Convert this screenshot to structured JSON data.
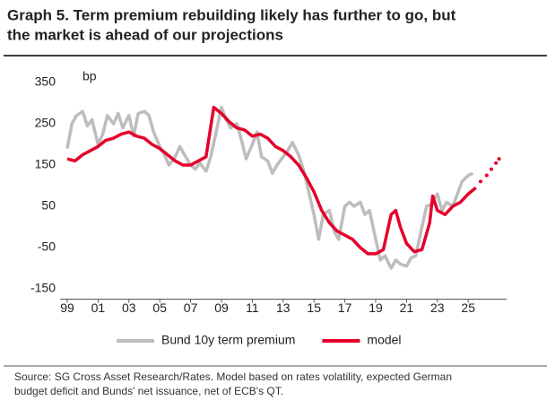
{
  "chart_data": {
    "type": "line",
    "title": [
      "Graph 5.  Term premium rebuilding likely has further to go, but",
      "the market is ahead of our projections"
    ],
    "y_unit": "bp",
    "source": [
      "Source: SG Cross Asset Research/Rates. Model based on rates volatility, expected German",
      "budget deficit and Bunds' net issuance, net of ECB's QT."
    ],
    "xlim": [
      1999,
      2027.5
    ],
    "xticks": [
      {
        "value": 1999,
        "label": "99"
      },
      {
        "value": 2001,
        "label": "01"
      },
      {
        "value": 2003,
        "label": "03"
      },
      {
        "value": 2005,
        "label": "05"
      },
      {
        "value": 2007,
        "label": "07"
      },
      {
        "value": 2009,
        "label": "09"
      },
      {
        "value": 2011,
        "label": "11"
      },
      {
        "value": 2013,
        "label": "13"
      },
      {
        "value": 2015,
        "label": "15"
      },
      {
        "value": 2017,
        "label": "17"
      },
      {
        "value": 2019,
        "label": "19"
      },
      {
        "value": 2021,
        "label": "21"
      },
      {
        "value": 2023,
        "label": "23"
      },
      {
        "value": 2025,
        "label": "25"
      }
    ],
    "ylim": [
      -175,
      375
    ],
    "yticks": [
      -150,
      -50,
      50,
      150,
      250,
      350
    ],
    "grid": false,
    "legend": "bottom",
    "series": [
      {
        "name": "Bund 10y term premium",
        "color": "#bdbdbd",
        "style": "solid",
        "x": [
          1999,
          1999.3,
          1999.6,
          2000,
          2000.3,
          2000.6,
          2001,
          2001.3,
          2001.6,
          2002,
          2002.3,
          2002.6,
          2003,
          2003.3,
          2003.6,
          2004,
          2004.3,
          2004.6,
          2005,
          2005.3,
          2005.6,
          2006,
          2006.3,
          2006.6,
          2007,
          2007.3,
          2007.6,
          2008,
          2008.3,
          2008.6,
          2009,
          2009.3,
          2009.6,
          2010,
          2010.3,
          2010.6,
          2011,
          2011.3,
          2011.6,
          2012,
          2012.3,
          2012.6,
          2013,
          2013.3,
          2013.6,
          2014,
          2014.3,
          2014.6,
          2015,
          2015.3,
          2015.6,
          2016,
          2016.3,
          2016.6,
          2017,
          2017.3,
          2017.6,
          2018,
          2018.3,
          2018.6,
          2019,
          2019.3,
          2019.6,
          2020,
          2020.3,
          2020.6,
          2021,
          2021.3,
          2021.6,
          2022,
          2022.3,
          2022.6,
          2023,
          2023.3,
          2023.6,
          2024,
          2024.3,
          2024.6,
          2025,
          2025.3
        ],
        "values": [
          190,
          250,
          270,
          280,
          245,
          260,
          200,
          225,
          270,
          250,
          275,
          240,
          270,
          220,
          275,
          280,
          270,
          230,
          195,
          175,
          150,
          170,
          195,
          175,
          150,
          140,
          155,
          135,
          170,
          220,
          290,
          260,
          240,
          250,
          210,
          165,
          200,
          230,
          170,
          160,
          130,
          150,
          170,
          185,
          205,
          175,
          140,
          95,
          30,
          -30,
          30,
          40,
          -10,
          -30,
          50,
          60,
          50,
          60,
          30,
          40,
          -30,
          -80,
          -70,
          -100,
          -80,
          -90,
          -95,
          -75,
          -70,
          0,
          50,
          55,
          80,
          40,
          60,
          50,
          80,
          110,
          125,
          130
        ]
      },
      {
        "name": "model",
        "color": "#e4002b",
        "style": "solid",
        "x": [
          1999,
          1999.5,
          2000,
          2000.5,
          2001,
          2001.5,
          2002,
          2002.5,
          2003,
          2003.5,
          2004,
          2004.5,
          2005,
          2005.5,
          2006,
          2006.5,
          2007,
          2007.5,
          2008,
          2008.5,
          2009,
          2009.5,
          2010,
          2010.5,
          2011,
          2011.5,
          2012,
          2012.5,
          2013,
          2013.5,
          2014,
          2014.5,
          2015,
          2015.5,
          2016,
          2016.5,
          2017,
          2017.5,
          2018,
          2018.5,
          2019,
          2019.5,
          2020,
          2020.3,
          2020.6,
          2021,
          2021.5,
          2022,
          2022.5,
          2022.7,
          2023,
          2023.5,
          2024,
          2024.5,
          2025,
          2025.5
        ],
        "values": [
          165,
          160,
          175,
          185,
          195,
          210,
          215,
          225,
          230,
          220,
          215,
          200,
          190,
          175,
          160,
          150,
          150,
          160,
          170,
          290,
          275,
          255,
          240,
          235,
          220,
          225,
          215,
          195,
          185,
          170,
          150,
          120,
          85,
          40,
          10,
          -10,
          -20,
          -30,
          -50,
          -65,
          -65,
          -55,
          30,
          40,
          0,
          -40,
          -60,
          -55,
          10,
          75,
          40,
          30,
          50,
          60,
          80,
          95
        ]
      },
      {
        "color": "#e4002b",
        "style": "dotted",
        "x": [
          2025.8,
          2026.2,
          2026.5,
          2026.8,
          2027
        ],
        "values": [
          110,
          125,
          140,
          155,
          165
        ]
      }
    ]
  }
}
